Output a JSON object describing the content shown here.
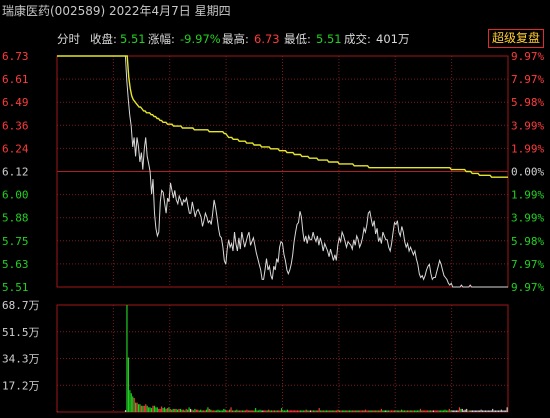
{
  "header": {
    "title": "瑞康医药(002589) 2022年4月7日 星期四"
  },
  "infobar": {
    "mode": "分时",
    "close_label": "收盘:",
    "close_value": "5.51",
    "change_label": "涨幅:",
    "change_value": "-9.97%",
    "high_label": "最高:",
    "high_value": "6.73",
    "low_label": "最低:",
    "low_value": "5.51",
    "volume_label": "成交:",
    "volume_value": "401万"
  },
  "button": {
    "label": "超级复盘"
  },
  "colors": {
    "up": "#ff3b3b",
    "down": "#21d121",
    "neutral": "#d0d0d0",
    "avg_line": "#e6e62a",
    "price_line": "#d8d8d8",
    "grid": "#7a1a1a"
  },
  "chart_data": [
    {
      "type": "line",
      "title": "",
      "prev_close": 6.12,
      "ylim": [
        5.51,
        6.73
      ],
      "y_ticks_left": [
        "6.73",
        "6.61",
        "6.49",
        "6.36",
        "6.24",
        "6.12",
        "6.00",
        "5.88",
        "5.75",
        "5.63",
        "5.51"
      ],
      "y_ticks_right": [
        "9.97%",
        "7.97%",
        "5.98%",
        "3.99%",
        "1.99%",
        "0.00%",
        "1.99%",
        "3.99%",
        "5.98%",
        "7.97%",
        "9.97%"
      ],
      "series": [
        {
          "key": "price",
          "values": [
            6.73,
            6.73,
            6.73,
            6.73,
            6.73,
            6.73,
            6.73,
            6.73,
            6.73,
            6.73,
            6.73,
            6.73,
            6.73,
            6.73,
            6.73,
            6.73,
            6.73,
            6.73,
            6.73,
            6.73,
            6.73,
            6.73,
            6.73,
            6.73,
            6.73,
            6.73,
            6.73,
            6.73,
            6.73,
            6.73,
            6.73,
            6.73,
            6.73,
            6.73,
            6.73,
            6.73,
            6.73,
            6.73,
            6.73,
            6.73,
            6.73,
            6.73,
            6.73,
            6.73,
            6.73,
            6.73,
            6.73,
            6.73,
            6.6,
            6.5,
            6.42,
            6.36,
            6.25,
            6.3,
            6.2,
            6.3,
            6.25,
            6.17,
            6.22,
            6.13,
            6.24,
            6.3,
            6.2,
            6.16,
            6.12,
            6.0,
            6.08,
            5.9,
            5.82,
            5.78,
            5.8,
            5.96,
            6.02,
            6.01,
            5.95,
            5.9,
            5.98,
            5.96,
            6.06,
            6.02,
            5.98,
            6.02,
            5.97,
            5.95,
            5.99,
            5.97,
            5.94,
            5.97,
            5.96,
            5.98,
            5.94,
            5.9,
            5.9,
            5.96,
            5.92,
            5.88,
            5.91,
            5.92,
            5.9,
            5.88,
            5.83,
            5.86,
            5.9,
            5.88,
            5.85,
            5.86,
            5.84,
            5.9,
            5.97,
            5.93,
            5.88,
            5.82,
            5.78,
            5.77,
            5.72,
            5.65,
            5.63,
            5.71,
            5.76,
            5.72,
            5.74,
            5.7,
            5.8,
            5.74,
            5.7,
            5.77,
            5.71,
            5.8,
            5.76,
            5.72,
            5.75,
            5.78,
            5.8,
            5.73,
            5.75,
            5.77,
            5.73,
            5.69,
            5.66,
            5.63,
            5.6,
            5.55,
            5.55,
            5.6,
            5.66,
            5.6,
            5.62,
            5.57,
            5.55,
            5.62,
            5.6,
            5.66,
            5.64,
            5.72,
            5.75,
            5.74,
            5.68,
            5.65,
            5.6,
            5.58,
            5.6,
            5.63,
            5.68,
            5.75,
            5.8,
            5.84,
            5.85,
            5.91,
            5.88,
            5.8,
            5.75,
            5.78,
            5.74,
            5.78,
            5.76,
            5.76,
            5.8,
            5.77,
            5.75,
            5.78,
            5.73,
            5.77,
            5.74,
            5.7,
            5.74,
            5.72,
            5.7,
            5.67,
            5.71,
            5.68,
            5.65,
            5.68,
            5.65,
            5.73,
            5.77,
            5.75,
            5.8,
            5.78,
            5.75,
            5.72,
            5.75,
            5.74,
            5.73,
            5.71,
            5.76,
            5.73,
            5.78,
            5.76,
            5.72,
            5.74,
            5.77,
            5.82,
            5.8,
            5.84,
            5.9,
            5.91,
            5.87,
            5.83,
            5.86,
            5.79,
            5.82,
            5.75,
            5.77,
            5.74,
            5.8,
            5.78,
            5.76,
            5.76,
            5.72,
            5.7,
            5.74,
            5.8,
            5.85,
            5.84,
            5.86,
            5.8,
            5.78,
            5.83,
            5.8,
            5.75,
            5.72,
            5.74,
            5.7,
            5.72,
            5.7,
            5.68,
            5.7,
            5.66,
            5.63,
            5.58,
            5.56,
            5.57,
            5.55,
            5.57,
            5.6,
            5.62,
            5.63,
            5.58,
            5.55,
            5.56,
            5.56,
            5.59,
            5.62,
            5.65,
            5.63,
            5.6,
            5.57,
            5.56,
            5.55,
            5.53,
            5.52,
            5.53,
            5.51,
            5.51,
            5.51,
            5.51,
            5.51,
            5.51,
            5.52,
            5.51,
            5.51,
            5.51,
            5.51,
            5.51,
            5.52,
            5.51,
            5.51,
            5.51,
            5.51,
            5.51,
            5.51,
            5.51,
            5.51,
            5.51,
            5.51,
            5.51,
            5.51,
            5.51,
            5.51,
            5.51,
            5.51,
            5.51,
            5.51,
            5.51,
            5.51,
            5.51,
            5.51,
            5.51,
            5.51,
            5.51,
            5.51
          ]
        },
        {
          "key": "average",
          "values": [
            6.73,
            6.73,
            6.73,
            6.73,
            6.73,
            6.73,
            6.73,
            6.73,
            6.73,
            6.73,
            6.73,
            6.73,
            6.73,
            6.73,
            6.73,
            6.73,
            6.73,
            6.73,
            6.73,
            6.73,
            6.73,
            6.73,
            6.73,
            6.73,
            6.73,
            6.73,
            6.73,
            6.73,
            6.73,
            6.73,
            6.73,
            6.73,
            6.73,
            6.73,
            6.73,
            6.73,
            6.73,
            6.73,
            6.73,
            6.73,
            6.73,
            6.73,
            6.73,
            6.73,
            6.73,
            6.73,
            6.73,
            6.73,
            6.62,
            6.56,
            6.52,
            6.5,
            6.49,
            6.48,
            6.47,
            6.46,
            6.46,
            6.45,
            6.44,
            6.44,
            6.43,
            6.43,
            6.43,
            6.42,
            6.42,
            6.41,
            6.41,
            6.4,
            6.4,
            6.39,
            6.39,
            6.38,
            6.38,
            6.38,
            6.37,
            6.37,
            6.37,
            6.37,
            6.36,
            6.36,
            6.36,
            6.36,
            6.36,
            6.36,
            6.35,
            6.35,
            6.35,
            6.35,
            6.35,
            6.35,
            6.35,
            6.35,
            6.34,
            6.34,
            6.34,
            6.34,
            6.34,
            6.34,
            6.34,
            6.34,
            6.34,
            6.34,
            6.33,
            6.33,
            6.33,
            6.33,
            6.33,
            6.33,
            6.33,
            6.33,
            6.33,
            6.33,
            6.32,
            6.32,
            6.31,
            6.3,
            6.3,
            6.3,
            6.29,
            6.29,
            6.29,
            6.29,
            6.28,
            6.28,
            6.28,
            6.28,
            6.28,
            6.27,
            6.27,
            6.27,
            6.27,
            6.27,
            6.26,
            6.26,
            6.26,
            6.26,
            6.26,
            6.25,
            6.25,
            6.25,
            6.25,
            6.25,
            6.25,
            6.24,
            6.24,
            6.24,
            6.24,
            6.24,
            6.24,
            6.23,
            6.23,
            6.23,
            6.23,
            6.23,
            6.22,
            6.22,
            6.22,
            6.22,
            6.22,
            6.21,
            6.21,
            6.21,
            6.21,
            6.21,
            6.2,
            6.2,
            6.2,
            6.2,
            6.2,
            6.19,
            6.19,
            6.19,
            6.19,
            6.19,
            6.19,
            6.18,
            6.18,
            6.18,
            6.18,
            6.18,
            6.18,
            6.18,
            6.17,
            6.17,
            6.17,
            6.17,
            6.17,
            6.17,
            6.17,
            6.16,
            6.16,
            6.16,
            6.16,
            6.16,
            6.16,
            6.16,
            6.16,
            6.16,
            6.16,
            6.15,
            6.15,
            6.15,
            6.15,
            6.15,
            6.15,
            6.15,
            6.15,
            6.15,
            6.15,
            6.14,
            6.14,
            6.14,
            6.14,
            6.14,
            6.14,
            6.14,
            6.14,
            6.14,
            6.14,
            6.14,
            6.14,
            6.14,
            6.14,
            6.14,
            6.14,
            6.14,
            6.14,
            6.14,
            6.14,
            6.14,
            6.14,
            6.14,
            6.14,
            6.14,
            6.14,
            6.14,
            6.14,
            6.14,
            6.14,
            6.14,
            6.14,
            6.14,
            6.14,
            6.14,
            6.14,
            6.14,
            6.14,
            6.14,
            6.14,
            6.14,
            6.14,
            6.14,
            6.14,
            6.14,
            6.14,
            6.14,
            6.14,
            6.14,
            6.14,
            6.14,
            6.14,
            6.14,
            6.14,
            6.14,
            6.13,
            6.13,
            6.13,
            6.13,
            6.13,
            6.13,
            6.13,
            6.13,
            6.13,
            6.13,
            6.12,
            6.12,
            6.12,
            6.12,
            6.11,
            6.11,
            6.11,
            6.11,
            6.11,
            6.1,
            6.1,
            6.1,
            6.1,
            6.1,
            6.1,
            6.1,
            6.1,
            6.09,
            6.09,
            6.09,
            6.09,
            6.09,
            6.09,
            6.09,
            6.09,
            6.09,
            6.09,
            6.09,
            6.09
          ]
        }
      ]
    },
    {
      "type": "bar",
      "title": "",
      "ylim": [
        0,
        68.7
      ],
      "y_ticks": [
        "68.7万",
        "51.5万",
        "34.3万",
        "17.2万"
      ],
      "series": [
        {
          "key": "volume",
          "values": [
            0.3,
            0,
            0,
            0,
            0,
            0,
            0,
            0,
            0,
            0,
            0,
            0,
            0,
            0,
            0,
            0,
            0,
            0,
            0,
            0,
            0,
            0,
            0,
            0,
            0,
            0,
            0,
            0,
            0,
            0,
            0,
            0,
            0,
            0,
            0,
            0,
            0,
            0,
            0,
            0,
            0,
            0,
            0,
            0,
            0,
            0,
            0,
            1.2,
            68.7,
            35,
            14,
            12,
            10,
            9,
            6,
            6,
            5,
            5,
            4,
            4,
            4,
            5,
            4,
            3,
            3,
            2.5,
            4,
            4,
            3,
            3,
            2,
            2,
            3.5,
            2.5,
            3,
            2,
            2.5,
            3,
            2,
            1.5,
            2,
            2,
            2,
            1.5,
            2,
            2,
            1.5,
            1.5,
            1,
            2,
            1.5,
            3,
            2,
            1.5,
            1,
            2,
            1.5,
            1.5,
            1,
            1.5,
            1,
            1,
            1,
            1.5,
            3,
            2,
            1.5,
            1,
            1,
            1,
            1,
            1.5,
            1,
            1,
            1,
            2,
            1.5,
            1,
            1,
            1.5,
            3,
            1,
            1,
            1,
            1.5,
            1,
            1,
            1,
            1,
            1,
            1,
            1.5,
            1,
            1,
            1,
            1,
            1,
            2.5,
            1,
            1,
            1.5,
            1,
            1,
            1,
            1,
            1,
            1.5,
            1,
            1,
            1,
            1,
            1,
            1,
            1,
            1,
            2.5,
            1,
            1,
            1,
            1.5,
            1,
            1,
            1,
            1,
            1,
            1,
            1,
            1,
            1,
            1,
            1,
            1,
            1.5,
            1,
            1,
            1,
            1,
            1,
            1,
            1,
            1,
            2.5,
            1,
            1,
            1,
            1,
            1,
            1,
            1,
            1,
            1,
            1,
            1,
            1,
            1.5,
            1,
            1,
            1,
            1,
            1,
            1,
            1,
            1,
            1,
            1,
            1,
            1,
            1,
            1,
            1,
            1,
            1,
            1,
            1.5,
            1,
            1,
            1,
            1,
            1,
            1,
            1,
            1,
            1,
            1,
            2,
            1,
            1,
            1,
            1,
            1,
            1,
            1,
            1,
            1,
            1,
            1,
            1,
            1,
            1.5,
            1,
            1,
            1,
            1,
            1,
            1,
            1,
            1,
            1,
            1,
            1,
            1,
            2,
            1,
            1,
            1,
            1,
            1,
            1,
            1,
            1,
            1,
            1,
            1,
            1,
            1,
            1,
            1,
            1,
            1.5,
            1,
            1,
            2,
            1,
            1,
            1,
            1,
            1,
            1,
            3,
            2,
            2,
            1,
            1.5,
            2,
            1,
            1,
            1,
            1,
            1,
            1,
            1,
            1,
            1,
            1.5,
            1,
            1,
            1,
            1,
            1,
            1,
            1,
            2,
            1,
            1,
            1,
            1,
            1,
            1.5,
            1,
            1,
            1,
            3
          ]
        }
      ]
    }
  ]
}
